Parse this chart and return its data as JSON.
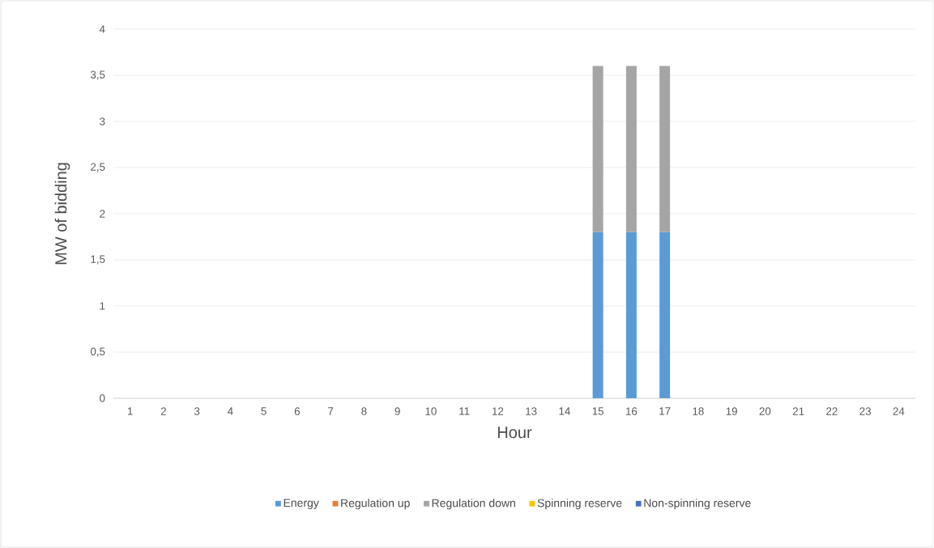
{
  "chart_data": {
    "type": "bar",
    "stacked": true,
    "xlabel": "Hour",
    "ylabel": "MW of bidding",
    "categories": [
      "1",
      "2",
      "3",
      "4",
      "5",
      "6",
      "7",
      "8",
      "9",
      "10",
      "11",
      "12",
      "13",
      "14",
      "15",
      "16",
      "17",
      "18",
      "19",
      "20",
      "21",
      "22",
      "23",
      "24"
    ],
    "series": [
      {
        "name": "Energy",
        "color": "#5b9bd5",
        "values": [
          0,
          0,
          0,
          0,
          0,
          0,
          0,
          0,
          0,
          0,
          0,
          0,
          0,
          0,
          1.8,
          1.8,
          1.8,
          0,
          0,
          0,
          0,
          0,
          0,
          0
        ]
      },
      {
        "name": "Regulation up",
        "color": "#ed7d31",
        "values": [
          0,
          0,
          0,
          0,
          0,
          0,
          0,
          0,
          0,
          0,
          0,
          0,
          0,
          0,
          0,
          0,
          0,
          0,
          0,
          0,
          0,
          0,
          0,
          0
        ]
      },
      {
        "name": "Regulation down",
        "color": "#a5a5a5",
        "values": [
          0,
          0,
          0,
          0,
          0,
          0,
          0,
          0,
          0,
          0,
          0,
          0,
          0,
          0,
          1.8,
          1.8,
          1.8,
          0,
          0,
          0,
          0,
          0,
          0,
          0
        ]
      },
      {
        "name": "Spinning reserve",
        "color": "#ffc000",
        "values": [
          0,
          0,
          0,
          0,
          0,
          0,
          0,
          0,
          0,
          0,
          0,
          0,
          0,
          0,
          0,
          0,
          0,
          0,
          0,
          0,
          0,
          0,
          0,
          0
        ]
      },
      {
        "name": "Non-spinning reserve",
        "color": "#4472c4",
        "values": [
          0,
          0,
          0,
          0,
          0,
          0,
          0,
          0,
          0,
          0,
          0,
          0,
          0,
          0,
          0,
          0,
          0,
          0,
          0,
          0,
          0,
          0,
          0,
          0
        ]
      }
    ],
    "ylim": [
      0,
      4
    ],
    "yticks": [
      0,
      {
        "value": 0.5,
        "label": "0,5"
      },
      1,
      {
        "value": 1.5,
        "label": "1,5"
      },
      2,
      {
        "value": 2.5,
        "label": "2,5"
      },
      3,
      {
        "value": 3.5,
        "label": "3,5"
      },
      4
    ],
    "grid": "y",
    "legend": "bottom"
  }
}
